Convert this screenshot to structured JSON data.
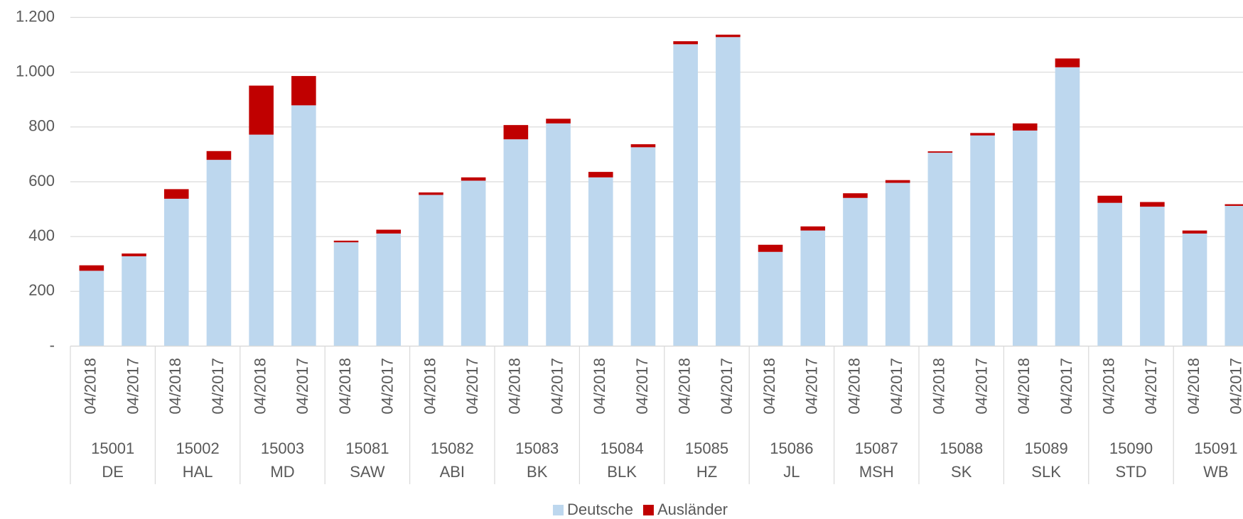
{
  "chart_data": {
    "type": "stacked_bar",
    "categories": [
      "04/2018",
      "04/2017",
      "04/2018",
      "04/2017",
      "04/2018",
      "04/2017",
      "04/2018",
      "04/2017",
      "04/2018",
      "04/2017",
      "04/2018",
      "04/2017",
      "04/2018",
      "04/2017",
      "04/2018",
      "04/2017",
      "04/2018",
      "04/2017",
      "04/2018",
      "04/2017",
      "04/2018",
      "04/2017",
      "04/2018",
      "04/2017",
      "04/2018",
      "04/2017",
      "04/2018",
      "04/2017"
    ],
    "groups": [
      {
        "code": "15001",
        "name": "DE"
      },
      {
        "code": "15002",
        "name": "HAL"
      },
      {
        "code": "15003",
        "name": "MD"
      },
      {
        "code": "15081",
        "name": "SAW"
      },
      {
        "code": "15082",
        "name": "ABI"
      },
      {
        "code": "15083",
        "name": "BK"
      },
      {
        "code": "15084",
        "name": "BLK"
      },
      {
        "code": "15085",
        "name": "HZ"
      },
      {
        "code": "15086",
        "name": "JL"
      },
      {
        "code": "15087",
        "name": "MSH"
      },
      {
        "code": "15088",
        "name": "SK"
      },
      {
        "code": "15089",
        "name": "SLK"
      },
      {
        "code": "15090",
        "name": "STD"
      },
      {
        "code": "15091",
        "name": "WB"
      }
    ],
    "series": [
      {
        "name": "Deutsche",
        "color": "#bdd7ee",
        "values": [
          275,
          328,
          538,
          680,
          772,
          879,
          379,
          411,
          552,
          604,
          755,
          813,
          616,
          726,
          1102,
          1128,
          344,
          422,
          541,
          596,
          706,
          769,
          787,
          1018,
          523,
          509,
          411,
          512
        ]
      },
      {
        "name": "Ausländer",
        "color": "#c00000",
        "values": [
          20,
          10,
          35,
          32,
          179,
          107,
          6,
          14,
          9,
          12,
          52,
          17,
          20,
          11,
          11,
          9,
          26,
          15,
          17,
          10,
          5,
          9,
          26,
          32,
          26,
          17,
          11,
          6
        ]
      }
    ],
    "ylim": [
      0,
      1200
    ],
    "yticks": [
      {
        "value": 0,
        "label": "-"
      },
      200,
      400,
      600,
      800,
      {
        "value": 1000,
        "label": "1.000"
      },
      {
        "value": 1200,
        "label": "1.200"
      }
    ],
    "grid": true,
    "legend": "bottom"
  }
}
